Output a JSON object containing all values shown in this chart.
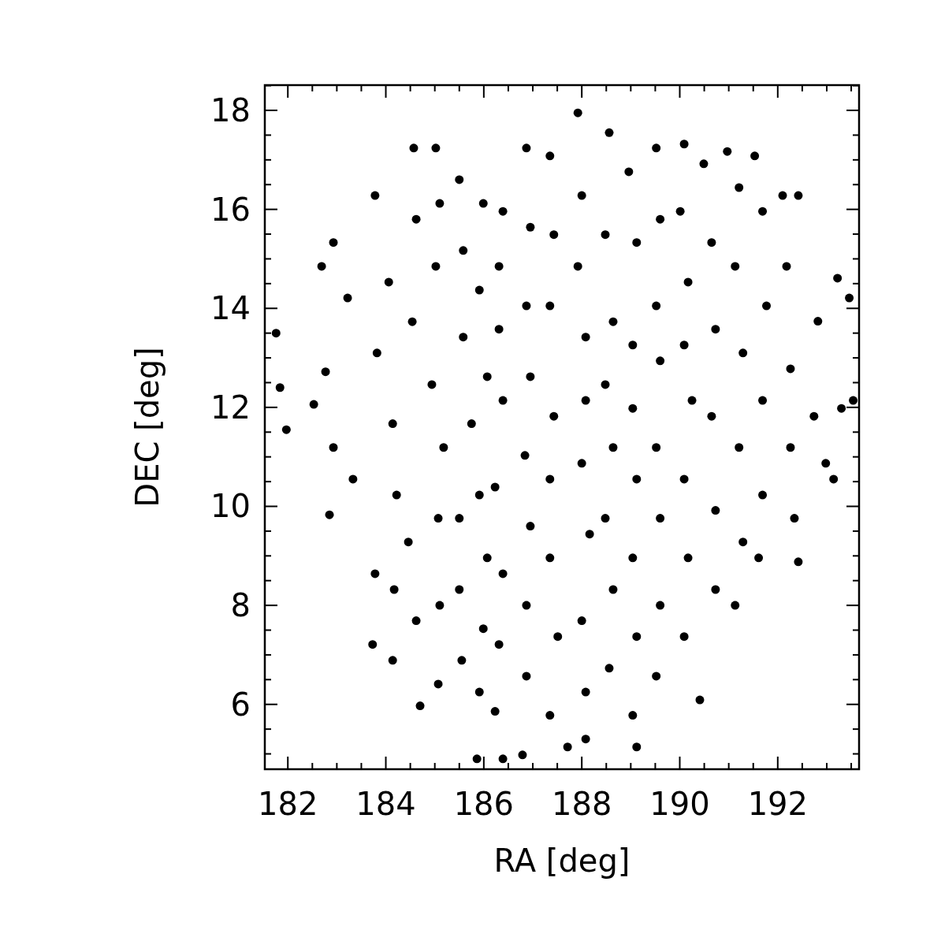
{
  "chart_data": {
    "type": "scatter",
    "xlabel": "RA [deg]",
    "ylabel": "DEC [deg]",
    "marker": "circle",
    "grid": false,
    "xlim": [
      181.53,
      193.66
    ],
    "ylim": [
      4.69,
      18.51
    ],
    "xticks": [
      182,
      184,
      186,
      188,
      190,
      192,
      {
        "value": 182.5,
        "label": null
      },
      {
        "value": 183,
        "label": null
      },
      {
        "value": 183.5,
        "label": null
      },
      {
        "value": 184.5,
        "label": null
      },
      {
        "value": 185,
        "label": null
      },
      {
        "value": 185.5,
        "label": null
      },
      {
        "value": 186.5,
        "label": null
      },
      {
        "value": 187,
        "label": null
      },
      {
        "value": 187.5,
        "label": null
      },
      {
        "value": 188.5,
        "label": null
      },
      {
        "value": 189,
        "label": null
      },
      {
        "value": 189.5,
        "label": null
      },
      {
        "value": 190.5,
        "label": null
      },
      {
        "value": 191,
        "label": null
      },
      {
        "value": 191.5,
        "label": null
      },
      {
        "value": 192.5,
        "label": null
      },
      {
        "value": 193,
        "label": null
      },
      {
        "value": 193.5,
        "label": null
      }
    ],
    "yticks": [
      6,
      8,
      10,
      12,
      14,
      16,
      18,
      {
        "value": 5,
        "label": null
      },
      {
        "value": 5.5,
        "label": null
      },
      {
        "value": 6.5,
        "label": null
      },
      {
        "value": 7,
        "label": null
      },
      {
        "value": 7.5,
        "label": null
      },
      {
        "value": 8.5,
        "label": null
      },
      {
        "value": 9,
        "label": null
      },
      {
        "value": 9.5,
        "label": null
      },
      {
        "value": 10.5,
        "label": null
      },
      {
        "value": 11,
        "label": null
      },
      {
        "value": 11.5,
        "label": null
      },
      {
        "value": 12.5,
        "label": null
      },
      {
        "value": 13,
        "label": null
      },
      {
        "value": 13.5,
        "label": null
      },
      {
        "value": 14.5,
        "label": null
      },
      {
        "value": 15,
        "label": null
      },
      {
        "value": 15.5,
        "label": null
      },
      {
        "value": 16.5,
        "label": null
      },
      {
        "value": 17,
        "label": null
      },
      {
        "value": 17.5,
        "label": null
      },
      {
        "value": 18.5,
        "label": null
      }
    ],
    "series": [
      {
        "color": "#000000",
        "x": [
          181.76,
          181.84,
          181.97,
          182.53,
          182.77,
          182.69,
          182.93,
          183.22,
          182.93,
          183.33,
          182.85,
          183.78,
          183.82,
          183.78,
          183.73,
          184.14,
          184.06,
          184.14,
          184.22,
          184.17,
          184.57,
          184.62,
          184.54,
          184.46,
          184.62,
          184.7,
          185.02,
          185.1,
          185.02,
          184.94,
          185.18,
          185.07,
          185.1,
          185.07,
          185.5,
          185.58,
          185.58,
          185.75,
          185.5,
          185.5,
          185.55,
          185.99,
          185.91,
          186.07,
          185.91,
          186.07,
          185.99,
          185.91,
          185.86,
          186.39,
          186.31,
          186.31,
          186.39,
          186.23,
          186.39,
          186.31,
          186.23,
          186.39,
          186.87,
          186.95,
          186.87,
          186.95,
          186.84,
          186.95,
          186.87,
          186.87,
          186.79,
          187.35,
          187.43,
          187.35,
          187.43,
          187.35,
          187.35,
          187.51,
          187.35,
          187.71,
          187.92,
          188.0,
          187.92,
          188.08,
          188.08,
          188.0,
          188.16,
          188.0,
          188.08,
          188.08,
          188.56,
          188.48,
          188.64,
          188.48,
          188.64,
          188.48,
          188.64,
          188.56,
          188.96,
          189.12,
          189.04,
          189.04,
          189.12,
          189.04,
          189.12,
          189.04,
          189.12,
          189.52,
          189.6,
          189.52,
          189.6,
          189.52,
          189.6,
          189.6,
          189.52,
          190.09,
          190.01,
          190.17,
          190.09,
          190.25,
          190.09,
          190.17,
          190.09,
          190.41,
          190.49,
          190.65,
          190.73,
          190.65,
          190.73,
          190.73,
          190.97,
          191.21,
          191.13,
          191.29,
          191.21,
          191.29,
          191.13,
          191.53,
          191.69,
          191.77,
          191.69,
          191.69,
          191.61,
          192.1,
          192.18,
          192.26,
          192.26,
          192.34,
          192.42,
          192.42,
          192.82,
          192.74,
          192.98,
          193.22,
          193.3,
          193.46,
          193.14,
          193.54
        ],
        "values": [
          13.5,
          12.4,
          11.55,
          12.06,
          12.72,
          14.85,
          15.33,
          14.21,
          11.19,
          10.55,
          9.83,
          16.28,
          13.1,
          8.64,
          7.21,
          6.89,
          14.53,
          11.67,
          10.23,
          8.32,
          17.24,
          15.8,
          13.73,
          9.28,
          7.69,
          5.97,
          17.24,
          16.12,
          14.85,
          12.46,
          11.19,
          9.76,
          8.0,
          6.41,
          16.6,
          15.17,
          13.42,
          11.67,
          9.76,
          8.32,
          6.89,
          16.12,
          14.37,
          12.62,
          10.23,
          8.96,
          7.53,
          6.25,
          4.9,
          15.96,
          14.85,
          13.58,
          12.14,
          10.39,
          8.64,
          7.21,
          5.86,
          4.9,
          17.24,
          15.64,
          14.05,
          12.62,
          11.03,
          9.6,
          8.0,
          6.57,
          4.98,
          17.08,
          15.49,
          14.05,
          11.82,
          10.55,
          8.96,
          7.37,
          5.78,
          5.14,
          17.95,
          16.28,
          14.85,
          13.42,
          12.14,
          10.87,
          9.44,
          7.69,
          6.25,
          5.3,
          17.55,
          15.49,
          13.73,
          12.46,
          11.19,
          9.76,
          8.32,
          6.73,
          16.76,
          15.33,
          13.26,
          11.98,
          10.55,
          8.96,
          7.37,
          5.78,
          5.14,
          17.24,
          15.8,
          14.05,
          12.94,
          11.19,
          9.76,
          8.0,
          6.57,
          17.32,
          15.96,
          14.53,
          13.26,
          12.14,
          10.55,
          8.96,
          7.37,
          6.09,
          16.92,
          15.33,
          13.58,
          11.82,
          9.92,
          8.32,
          17.17,
          16.44,
          14.85,
          13.1,
          11.19,
          9.28,
          8.0,
          17.08,
          15.96,
          14.05,
          12.14,
          10.23,
          8.96,
          16.28,
          14.85,
          12.78,
          11.19,
          9.76,
          8.88,
          16.28,
          13.74,
          11.82,
          10.87,
          14.61,
          11.98,
          14.21,
          10.55,
          12.14
        ]
      }
    ]
  }
}
